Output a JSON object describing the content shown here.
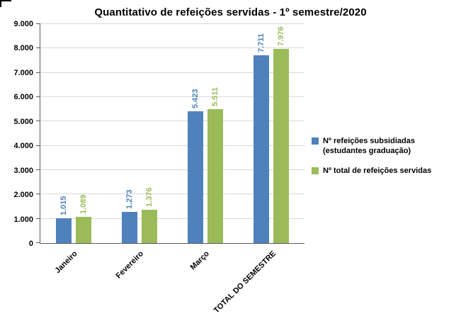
{
  "chart_data": {
    "type": "bar",
    "title": "Quantitativo de refeições servidas - 1º semestre/2020",
    "categories": [
      "Janeiro",
      "Fevereiro",
      "Março",
      "TOTAL DO SEMESTRE"
    ],
    "series": [
      {
        "name": "Nº refeições subsidiadas (estudantes graduação)",
        "color": "#4F81BD",
        "values": [
          1015,
          1273,
          5423,
          7711
        ],
        "labels": [
          "1.015",
          "1.273",
          "5.423",
          "7.711"
        ]
      },
      {
        "name": "Nº total de refeições servidas",
        "color": "#9BBB59",
        "values": [
          1089,
          1376,
          5511,
          7976
        ],
        "labels": [
          "1.089",
          "1.376",
          "5.511",
          "7.976"
        ]
      }
    ],
    "xlabel": "",
    "ylabel": "",
    "ylim": [
      0,
      9000
    ],
    "ytick_step": 1000,
    "ytick_labels": [
      "0",
      "1.000",
      "2.000",
      "3.000",
      "4.000",
      "5.000",
      "6.000",
      "7.000",
      "8.000",
      "9.000"
    ],
    "grid": true,
    "legend_position": "right",
    "colors": {
      "grid": "#D9D9D9",
      "axis": "#595959",
      "background": "#FFFFFF"
    }
  }
}
